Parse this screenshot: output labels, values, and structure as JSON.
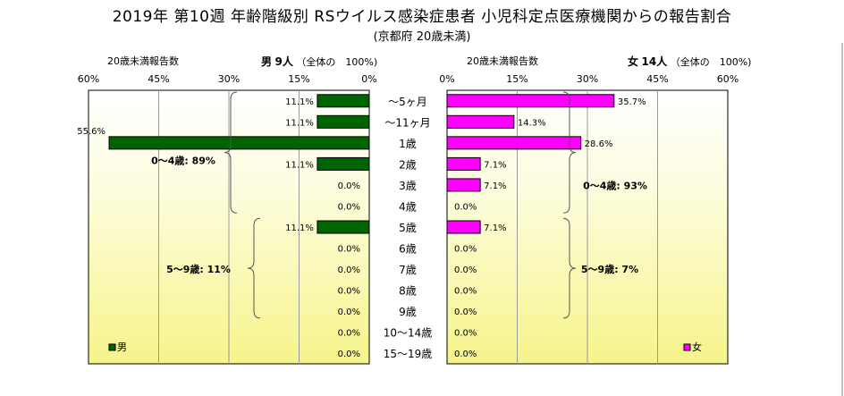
{
  "chart_data": {
    "type": "bar",
    "title": "2019年 第10週 年齢階級別 RSウイルス感染症患者 小児科定点医療機関からの報告割合",
    "subtitle": "(京都府 20歳未満)",
    "categories": [
      "～5ヶ月",
      "～11ヶ月",
      "1歳",
      "2歳",
      "3歳",
      "4歳",
      "5歳",
      "6歳",
      "7歳",
      "8歳",
      "9歳",
      "10～14歳",
      "15～19歳"
    ],
    "male": {
      "header_left": "20歳未満報告数",
      "header_sex": "男",
      "header_count": "9人",
      "header_note": "（全体の　100%)",
      "legend": "男",
      "color": "#006400",
      "values": [
        11.1,
        11.1,
        55.6,
        11.1,
        0.0,
        0.0,
        11.1,
        0.0,
        0.0,
        0.0,
        0.0,
        0.0,
        0.0
      ],
      "labels": [
        "11.1%",
        "11.1%",
        "55.6%",
        "11.1%",
        "0.0%",
        "0.0%",
        "11.1%",
        "0.0%",
        "0.0%",
        "0.0%",
        "0.0%",
        "0.0%",
        "0.0%"
      ],
      "group_labels": [
        "0～4歳: 89%",
        "5～9歳: 11%"
      ],
      "xlim": [
        0,
        60
      ],
      "ticks": [
        "60%",
        "45%",
        "30%",
        "15%",
        "0%"
      ]
    },
    "female": {
      "header_left": "20歳未満報告数",
      "header_sex": "女",
      "header_count": "14人",
      "header_note": "（全体の　100%)",
      "legend": "女",
      "color": "#ff00ff",
      "values": [
        35.7,
        14.3,
        28.6,
        7.1,
        7.1,
        0.0,
        7.1,
        0.0,
        0.0,
        0.0,
        0.0,
        0.0,
        0.0
      ],
      "labels": [
        "35.7%",
        "14.3%",
        "28.6%",
        "7.1%",
        "7.1%",
        "0.0%",
        "7.1%",
        "0.0%",
        "0.0%",
        "0.0%",
        "0.0%",
        "0.0%",
        "0.0%"
      ],
      "group_labels": [
        "0～4歳: 93%",
        "5～9歳: 7%"
      ],
      "xlim": [
        0,
        60
      ],
      "ticks": [
        "0%",
        "15%",
        "30%",
        "45%",
        "60%"
      ]
    },
    "grid": true
  }
}
